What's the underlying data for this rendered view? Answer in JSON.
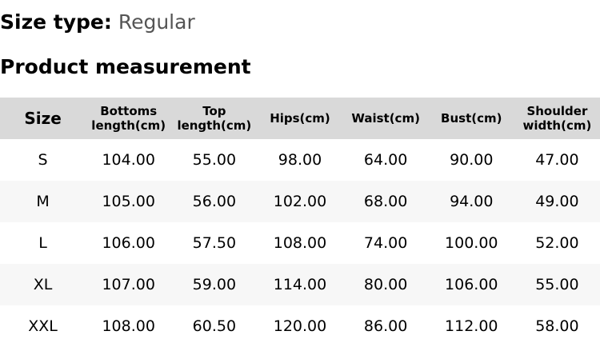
{
  "size_type": {
    "label": "Size type:",
    "value": "Regular"
  },
  "section_title": "Product measurement",
  "table": {
    "headers": [
      "Size",
      "Bottoms length(cm)",
      "Top length(cm)",
      "Hips(cm)",
      "Waist(cm)",
      "Bust(cm)",
      "Shoulder width(cm)"
    ],
    "rows": [
      [
        "S",
        "104.00",
        "55.00",
        "98.00",
        "64.00",
        "90.00",
        "47.00"
      ],
      [
        "M",
        "105.00",
        "56.00",
        "102.00",
        "68.00",
        "94.00",
        "49.00"
      ],
      [
        "L",
        "106.00",
        "57.50",
        "108.00",
        "74.00",
        "100.00",
        "52.00"
      ],
      [
        "XL",
        "107.00",
        "59.00",
        "114.00",
        "80.00",
        "106.00",
        "55.00"
      ],
      [
        "XXL",
        "108.00",
        "60.50",
        "120.00",
        "86.00",
        "112.00",
        "58.00"
      ]
    ]
  },
  "colors": {
    "header_bg": "#d9d9d9",
    "alt_row_bg": "#f7f7f7",
    "value_text": "#555555"
  }
}
